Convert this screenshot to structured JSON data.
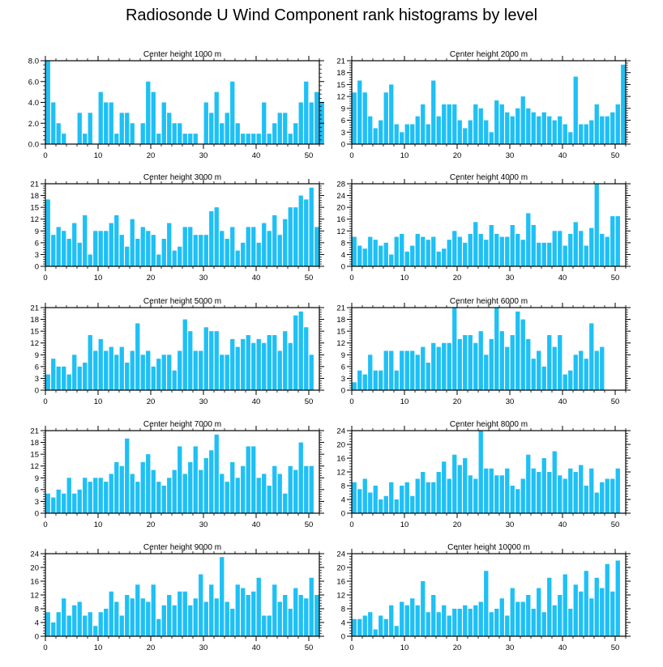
{
  "page": {
    "title": "Radiosonde U Wind Component rank histograms by level"
  },
  "colors": {
    "bar": "#1ec0f5",
    "axis": "#000000"
  },
  "chart_data": [
    {
      "type": "bar",
      "title": "Center height 1000 m",
      "xlim": [
        0,
        52
      ],
      "ylim": [
        0,
        8
      ],
      "xticks": [
        0,
        10,
        20,
        30,
        40,
        50
      ],
      "yticks": [
        0,
        2,
        4,
        6,
        8
      ],
      "ytick_labels": [
        "0.0",
        "2.0",
        "4.0",
        "6.0",
        "8.0"
      ],
      "values": [
        8,
        4,
        2,
        1,
        0,
        0,
        3,
        1,
        3,
        0,
        5,
        4,
        4,
        1,
        3,
        3,
        2,
        0,
        2,
        6,
        5,
        1,
        4,
        3,
        2,
        2,
        1,
        1,
        1,
        0,
        4,
        3,
        5,
        2,
        3,
        6,
        2,
        1,
        1,
        1,
        1,
        4,
        1,
        2,
        3,
        3,
        1,
        2,
        4,
        6,
        4,
        5,
        4
      ]
    },
    {
      "type": "bar",
      "title": "Center height 2000 m",
      "xlim": [
        0,
        52
      ],
      "ylim": [
        0,
        21
      ],
      "xticks": [
        0,
        10,
        20,
        30,
        40,
        50
      ],
      "yticks": [
        0,
        3,
        6,
        9,
        12,
        15,
        18,
        21
      ],
      "ytick_labels": [
        "0",
        "3",
        "6",
        "9",
        "12",
        "15",
        "18",
        "21"
      ],
      "values": [
        13,
        16,
        13,
        7,
        4,
        6,
        13,
        15,
        5,
        3,
        5,
        5,
        7,
        10,
        5,
        16,
        7,
        10,
        10,
        10,
        6,
        4,
        6,
        10,
        9,
        6,
        3,
        11,
        10,
        8,
        7,
        9,
        12,
        9,
        8,
        7,
        8,
        7,
        6,
        7,
        5,
        3,
        17,
        5,
        5,
        6,
        10,
        7,
        7,
        8,
        10,
        20
      ]
    },
    {
      "type": "bar",
      "title": "Center height 3000 m",
      "xlim": [
        0,
        52
      ],
      "ylim": [
        0,
        21
      ],
      "xticks": [
        0,
        10,
        20,
        30,
        40,
        50
      ],
      "yticks": [
        0,
        3,
        6,
        9,
        12,
        15,
        18,
        21
      ],
      "ytick_labels": [
        "0",
        "3",
        "6",
        "9",
        "12",
        "15",
        "18",
        "21"
      ],
      "values": [
        17,
        8,
        10,
        9,
        7,
        11,
        6,
        13,
        3,
        9,
        9,
        9,
        11,
        13,
        8,
        5,
        12,
        7,
        10,
        9,
        8,
        3,
        7,
        11,
        4,
        5,
        10,
        10,
        8,
        8,
        8,
        14,
        15,
        9,
        7,
        10,
        4,
        6,
        10,
        10,
        6,
        11,
        9,
        13,
        8,
        12,
        15,
        15,
        18,
        17,
        20,
        10
      ]
    },
    {
      "type": "bar",
      "title": "Center height 4000 m",
      "xlim": [
        0,
        52
      ],
      "ylim": [
        0,
        28
      ],
      "xticks": [
        0,
        10,
        20,
        30,
        40,
        50
      ],
      "yticks": [
        0,
        4,
        8,
        12,
        16,
        20,
        24,
        28
      ],
      "ytick_labels": [
        "0",
        "4",
        "8",
        "12",
        "16",
        "20",
        "24",
        "28"
      ],
      "values": [
        10,
        7,
        6,
        10,
        9,
        7,
        8,
        4,
        10,
        11,
        5,
        7,
        11,
        10,
        9,
        10,
        5,
        6,
        9,
        12,
        10,
        8,
        11,
        15,
        11,
        9,
        14,
        11,
        10,
        10,
        14,
        11,
        9,
        18,
        14,
        8,
        8,
        8,
        12,
        12,
        7,
        11,
        15,
        12,
        7,
        13,
        28,
        11,
        10,
        17,
        17
      ]
    },
    {
      "type": "bar",
      "title": "Center height 5000 m",
      "xlim": [
        0,
        52
      ],
      "ylim": [
        0,
        21
      ],
      "xticks": [
        0,
        10,
        20,
        30,
        40,
        50
      ],
      "yticks": [
        0,
        3,
        6,
        9,
        12,
        15,
        18,
        21
      ],
      "ytick_labels": [
        "0",
        "3",
        "6",
        "9",
        "12",
        "15",
        "18",
        "21"
      ],
      "values": [
        4,
        8,
        6,
        6,
        4,
        9,
        6,
        7,
        14,
        10,
        13,
        10,
        11,
        9,
        11,
        7,
        10,
        17,
        9,
        10,
        6,
        8,
        9,
        9,
        5,
        10,
        18,
        15,
        10,
        10,
        16,
        15,
        15,
        9,
        9,
        13,
        11,
        13,
        14,
        12,
        13,
        12,
        14,
        14,
        10,
        15,
        12,
        19,
        20,
        16,
        9
      ]
    },
    {
      "type": "bar",
      "title": "Center height 6000 m",
      "xlim": [
        0,
        52
      ],
      "ylim": [
        0,
        21
      ],
      "xticks": [
        0,
        10,
        20,
        30,
        40,
        50
      ],
      "yticks": [
        0,
        3,
        6,
        9,
        12,
        15,
        18,
        21
      ],
      "ytick_labels": [
        "0",
        "3",
        "6",
        "9",
        "12",
        "15",
        "18",
        "21"
      ],
      "values": [
        2,
        5,
        4,
        9,
        5,
        5,
        10,
        10,
        5,
        10,
        10,
        10,
        9,
        11,
        7,
        12,
        11,
        12,
        12,
        21,
        13,
        14,
        14,
        12,
        15,
        9,
        13,
        21,
        15,
        11,
        14,
        20,
        18,
        13,
        8,
        10,
        6,
        14,
        11,
        14,
        4,
        5,
        9,
        10,
        8,
        17,
        10,
        11
      ]
    },
    {
      "type": "bar",
      "title": "Center height 7000 m",
      "xlim": [
        0,
        52
      ],
      "ylim": [
        0,
        21
      ],
      "xticks": [
        0,
        10,
        20,
        30,
        40,
        50
      ],
      "yticks": [
        0,
        3,
        6,
        9,
        12,
        15,
        18,
        21
      ],
      "ytick_labels": [
        "0",
        "3",
        "6",
        "9",
        "12",
        "15",
        "18",
        "21"
      ],
      "values": [
        5,
        4,
        6,
        5,
        9,
        5,
        6,
        9,
        8,
        9,
        9,
        8,
        10,
        13,
        12,
        19,
        10,
        8,
        13,
        15,
        11,
        8,
        7,
        9,
        11,
        17,
        10,
        13,
        17,
        11,
        14,
        16,
        20,
        10,
        8,
        13,
        9,
        12,
        17,
        17,
        9,
        10,
        7,
        12,
        10,
        5,
        12,
        11,
        18,
        12,
        12
      ]
    },
    {
      "type": "bar",
      "title": "Center height 8000 m",
      "xlim": [
        0,
        52
      ],
      "ylim": [
        0,
        24
      ],
      "xticks": [
        0,
        10,
        20,
        30,
        40,
        50
      ],
      "yticks": [
        0,
        4,
        8,
        12,
        16,
        20,
        24
      ],
      "ytick_labels": [
        "0",
        "4",
        "8",
        "12",
        "16",
        "20",
        "24"
      ],
      "values": [
        9,
        7,
        10,
        6,
        8,
        4,
        5,
        9,
        4,
        8,
        9,
        5,
        10,
        12,
        9,
        9,
        12,
        15,
        10,
        17,
        14,
        16,
        11,
        10,
        24,
        13,
        13,
        11,
        11,
        13,
        8,
        7,
        10,
        17,
        13,
        12,
        16,
        12,
        18,
        11,
        10,
        13,
        12,
        14,
        8,
        13,
        6,
        9,
        10,
        10,
        13
      ]
    },
    {
      "type": "bar",
      "title": "Center height 9000 m",
      "xlim": [
        0,
        52
      ],
      "ylim": [
        0,
        24
      ],
      "xticks": [
        0,
        10,
        20,
        30,
        40,
        50
      ],
      "yticks": [
        0,
        4,
        8,
        12,
        16,
        20,
        24
      ],
      "ytick_labels": [
        "0",
        "4",
        "8",
        "12",
        "16",
        "20",
        "24"
      ],
      "values": [
        7,
        4,
        7,
        11,
        6,
        9,
        10,
        6,
        7,
        3,
        7,
        8,
        13,
        10,
        6,
        12,
        11,
        15,
        11,
        10,
        15,
        5,
        9,
        12,
        9,
        13,
        13,
        9,
        11,
        18,
        10,
        15,
        11,
        23,
        10,
        8,
        15,
        14,
        12,
        13,
        17,
        6,
        6,
        15,
        10,
        12,
        8,
        14,
        12,
        11,
        17,
        12
      ]
    },
    {
      "type": "bar",
      "title": "Center height 10000 m",
      "xlim": [
        0,
        52
      ],
      "ylim": [
        0,
        24
      ],
      "xticks": [
        0,
        10,
        20,
        30,
        40,
        50
      ],
      "yticks": [
        0,
        4,
        8,
        12,
        16,
        20,
        24
      ],
      "ytick_labels": [
        "0",
        "4",
        "8",
        "12",
        "16",
        "20",
        "24"
      ],
      "values": [
        5,
        5,
        6,
        7,
        2,
        6,
        5,
        9,
        3,
        10,
        9,
        11,
        9,
        16,
        7,
        12,
        7,
        9,
        6,
        8,
        8,
        9,
        8,
        9,
        10,
        19,
        7,
        8,
        11,
        6,
        14,
        10,
        10,
        12,
        8,
        14,
        7,
        17,
        9,
        12,
        18,
        8,
        15,
        13,
        19,
        11,
        17,
        14,
        21,
        13,
        22
      ]
    }
  ]
}
